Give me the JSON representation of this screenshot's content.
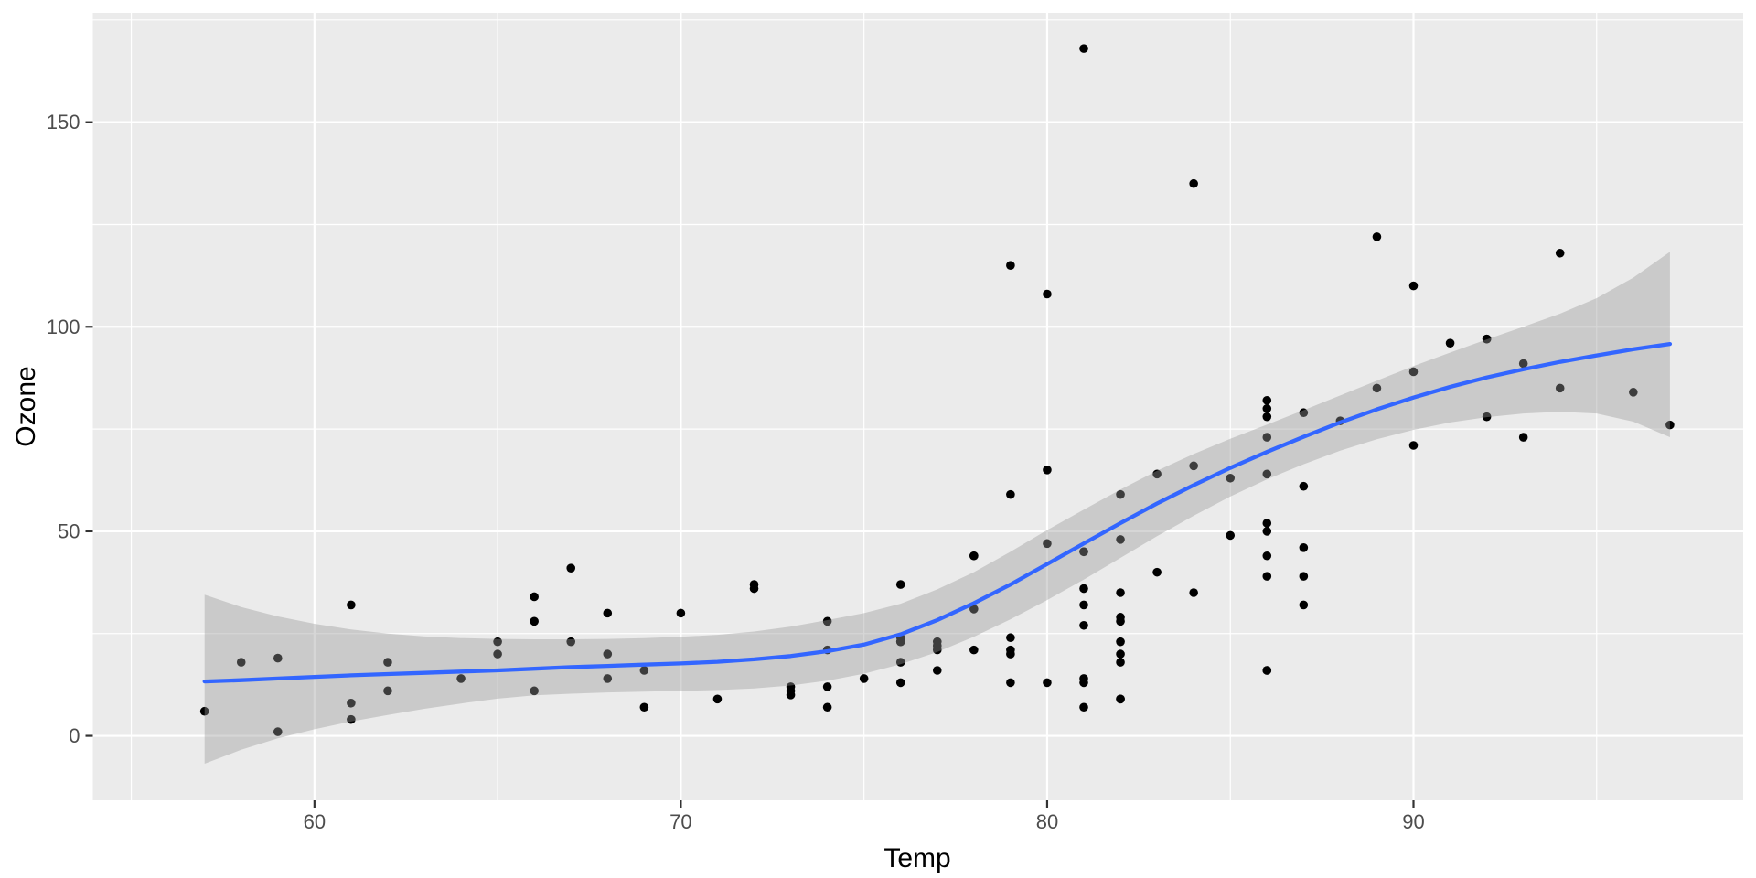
{
  "figure": {
    "background": "#FFFFFF",
    "panel_background": "#EBEBEB",
    "grid_color": "#FFFFFF",
    "axis_text_color": "#4D4D4D",
    "axis_title_color": "#000000",
    "tick_color": "#333333"
  },
  "chart_data": {
    "type": "scatter",
    "title": "",
    "xlabel": "Temp",
    "ylabel": "Ozone",
    "xlim": [
      53.95,
      99.0
    ],
    "ylim": [
      -15.75,
      176.75
    ],
    "x_major_ticks": [
      60,
      70,
      80,
      90
    ],
    "y_major_ticks": [
      0,
      50,
      100,
      150
    ],
    "x_minor_breaks": [
      55,
      65,
      75,
      85,
      95
    ],
    "y_minor_breaks": [
      25,
      75,
      125,
      175
    ],
    "grid": true,
    "legend_position": "none",
    "point_color": "#000000",
    "smooth_line_color": "#3366FF",
    "ribbon_fill": "rgba(153,153,153,0.4)",
    "points": [
      [
        67,
        41
      ],
      [
        72,
        36
      ],
      [
        74,
        12
      ],
      [
        62,
        18
      ],
      [
        66,
        28
      ],
      [
        65,
        23
      ],
      [
        59,
        19
      ],
      [
        61,
        8
      ],
      [
        74,
        7
      ],
      [
        69,
        16
      ],
      [
        66,
        11
      ],
      [
        68,
        14
      ],
      [
        58,
        18
      ],
      [
        64,
        14
      ],
      [
        66,
        34
      ],
      [
        57,
        6
      ],
      [
        68,
        30
      ],
      [
        62,
        11
      ],
      [
        59,
        1
      ],
      [
        73,
        11
      ],
      [
        61,
        4
      ],
      [
        61,
        32
      ],
      [
        67,
        23
      ],
      [
        81,
        45
      ],
      [
        79,
        115
      ],
      [
        76,
        37
      ],
      [
        82,
        29
      ],
      [
        90,
        71
      ],
      [
        87,
        39
      ],
      [
        82,
        23
      ],
      [
        77,
        21
      ],
      [
        72,
        37
      ],
      [
        65,
        20
      ],
      [
        73,
        12
      ],
      [
        76,
        13
      ],
      [
        84,
        135
      ],
      [
        85,
        49
      ],
      [
        81,
        32
      ],
      [
        83,
        64
      ],
      [
        83,
        40
      ],
      [
        88,
        77
      ],
      [
        92,
        97
      ],
      [
        92,
        97
      ],
      [
        89,
        85
      ],
      [
        73,
        10
      ],
      [
        81,
        27
      ],
      [
        81,
        7
      ],
      [
        82,
        48
      ],
      [
        84,
        35
      ],
      [
        87,
        61
      ],
      [
        87,
        79
      ],
      [
        85,
        63
      ],
      [
        86,
        16
      ],
      [
        86,
        80
      ],
      [
        80,
        108
      ],
      [
        79,
        20
      ],
      [
        86,
        52
      ],
      [
        86,
        82
      ],
      [
        86,
        50
      ],
      [
        86,
        64
      ],
      [
        82,
        59
      ],
      [
        86,
        39
      ],
      [
        82,
        9
      ],
      [
        86,
        16
      ],
      [
        86,
        78
      ],
      [
        82,
        35
      ],
      [
        84,
        66
      ],
      [
        89,
        122
      ],
      [
        90,
        89
      ],
      [
        90,
        110
      ],
      [
        86,
        44
      ],
      [
        82,
        28
      ],
      [
        80,
        65
      ],
      [
        77,
        22
      ],
      [
        79,
        59
      ],
      [
        76,
        23
      ],
      [
        78,
        31
      ],
      [
        78,
        44
      ],
      [
        74,
        21
      ],
      [
        82,
        9
      ],
      [
        81,
        45
      ],
      [
        81,
        168
      ],
      [
        86,
        73
      ],
      [
        97,
        76
      ],
      [
        94,
        118
      ],
      [
        96,
        84
      ],
      [
        94,
        85
      ],
      [
        91,
        96
      ],
      [
        92,
        78
      ],
      [
        93,
        73
      ],
      [
        93,
        91
      ],
      [
        80,
        47
      ],
      [
        87,
        32
      ],
      [
        82,
        20
      ],
      [
        77,
        23
      ],
      [
        79,
        21
      ],
      [
        76,
        24
      ],
      [
        78,
        44
      ],
      [
        78,
        21
      ],
      [
        74,
        28
      ],
      [
        71,
        9
      ],
      [
        81,
        13
      ],
      [
        87,
        46
      ],
      [
        82,
        18
      ],
      [
        80,
        13
      ],
      [
        79,
        24
      ],
      [
        77,
        16
      ],
      [
        79,
        13
      ],
      [
        76,
        23
      ],
      [
        81,
        36
      ],
      [
        69,
        7
      ],
      [
        81,
        14
      ],
      [
        70,
        30
      ],
      [
        75,
        14
      ],
      [
        76,
        18
      ],
      [
        68,
        20
      ]
    ],
    "smooth": {
      "x": [
        57,
        58,
        59,
        60,
        61,
        62,
        63,
        64,
        65,
        66,
        67,
        68,
        69,
        70,
        71,
        72,
        73,
        74,
        75,
        76,
        77,
        78,
        79,
        80,
        81,
        82,
        83,
        84,
        85,
        86,
        87,
        88,
        89,
        90,
        91,
        92,
        93,
        94,
        95,
        96,
        97
      ],
      "y": [
        13.3,
        13.6,
        14.0,
        14.4,
        14.8,
        15.1,
        15.4,
        15.7,
        16.0,
        16.4,
        16.8,
        17.1,
        17.4,
        17.7,
        18.1,
        18.7,
        19.5,
        20.7,
        22.3,
        24.8,
        28.3,
        32.4,
        37.0,
        42.0,
        47.0,
        52.0,
        56.8,
        61.3,
        65.5,
        69.4,
        73.1,
        76.6,
        79.8,
        82.7,
        85.3,
        87.6,
        89.6,
        91.4,
        93.0,
        94.5,
        95.8
      ],
      "lower": [
        -6.8,
        -3.4,
        -0.6,
        1.6,
        3.5,
        5.1,
        6.6,
        7.9,
        9.1,
        9.9,
        10.3,
        10.6,
        10.8,
        11.0,
        11.2,
        11.6,
        12.3,
        13.5,
        15.2,
        17.5,
        20.5,
        24.2,
        28.5,
        33.2,
        38.2,
        43.5,
        48.8,
        53.8,
        58.5,
        62.7,
        66.4,
        69.7,
        72.5,
        74.8,
        76.6,
        77.9,
        78.8,
        79.2,
        78.8,
        76.8,
        73.0
      ],
      "upper": [
        34.5,
        31.5,
        29.2,
        27.4,
        26.0,
        25.0,
        24.3,
        23.9,
        23.7,
        23.6,
        23.6,
        23.7,
        23.9,
        24.2,
        24.7,
        25.5,
        26.7,
        28.3,
        30.0,
        32.3,
        35.8,
        40.0,
        45.0,
        50.3,
        55.3,
        60.2,
        64.8,
        68.9,
        72.6,
        76.1,
        79.6,
        83.2,
        86.8,
        90.4,
        93.7,
        96.9,
        100.0,
        103.2,
        107.0,
        112.0,
        118.3
      ]
    }
  }
}
